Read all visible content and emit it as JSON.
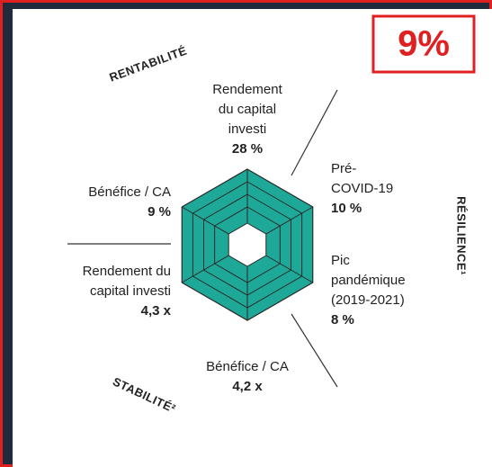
{
  "badge": "9%",
  "sections": [
    {
      "title": "RENTABILITÉ",
      "items": [
        {
          "lines": [
            "Rendement",
            "du capital",
            "investi"
          ],
          "value": "28 %"
        },
        {
          "lines": [
            "Bénéfice / CA"
          ],
          "value": "9 %"
        }
      ]
    },
    {
      "title": "RÉSILIENCE¹",
      "items": [
        {
          "lines": [
            "Pré-",
            "COVID-19"
          ],
          "value": "10 %"
        },
        {
          "lines": [
            "Pic",
            "pandémique",
            "(2019-2021)"
          ],
          "value": "8 %"
        }
      ]
    },
    {
      "title": "STABILITÉ²",
      "items": [
        {
          "lines": [
            "Rendement du",
            "capital investi"
          ],
          "value": "4,3 x"
        },
        {
          "lines": [
            "Bénéfice / CA"
          ],
          "value": "4,2 x"
        }
      ]
    }
  ]
}
